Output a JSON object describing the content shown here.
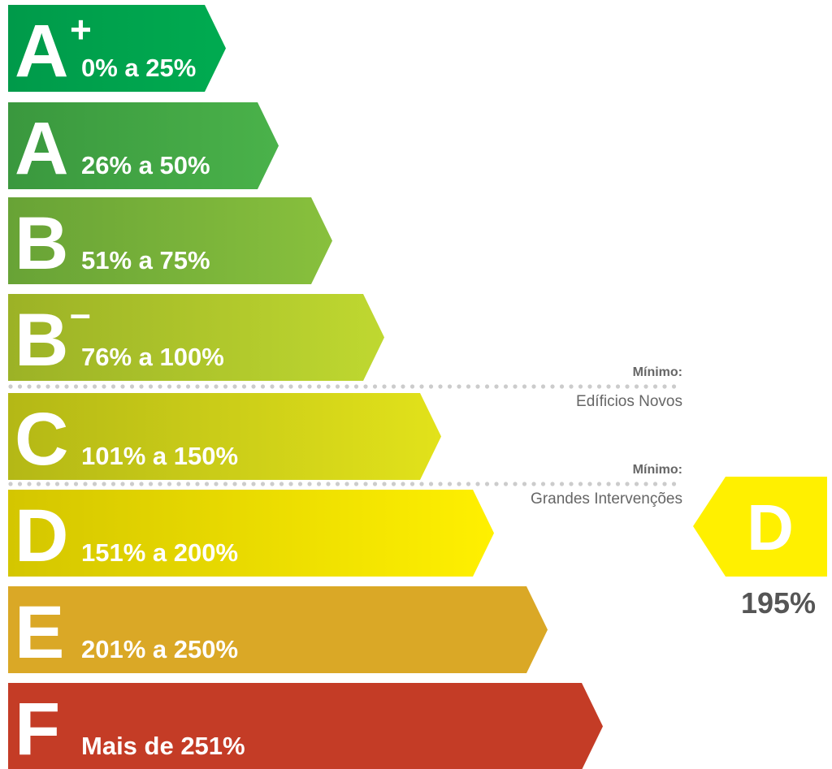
{
  "classes": [
    {
      "letter": "A",
      "modifier": "+",
      "range": "0% a 25%",
      "color_start": "#009a4a",
      "color_end": "#00ab50"
    },
    {
      "letter": "A",
      "modifier": "",
      "range": "26% a 50%",
      "color_start": "#3a983e",
      "color_end": "#4ab24a"
    },
    {
      "letter": "B",
      "modifier": "",
      "range": "51% a 75%",
      "color_start": "#68a336",
      "color_end": "#88c03d"
    },
    {
      "letter": "B",
      "modifier": "-",
      "range": "76% a 100%",
      "color_start": "#9cb226",
      "color_end": "#bfd830"
    },
    {
      "letter": "C",
      "modifier": "",
      "range": "101% a 150%",
      "color_start": "#b4b816",
      "color_end": "#e2e21a"
    },
    {
      "letter": "D",
      "modifier": "",
      "range": "151% a 200%",
      "color_start": "#d4c600",
      "color_end": "#fff000"
    },
    {
      "letter": "E",
      "modifier": "",
      "range": "201% a 250%",
      "color_start": "#daa826",
      "color_end": "#daa826"
    },
    {
      "letter": "F",
      "modifier": "",
      "range": "Mais de 251%",
      "color_start": "#c43c26",
      "color_end": "#c43c26"
    }
  ],
  "thresholds": [
    {
      "label": "Mínimo:",
      "sublabel": "Edíficios Novos",
      "after_class": "B-"
    },
    {
      "label": "Mínimo:",
      "sublabel": "Grandes Intervenções",
      "after_class": "C"
    }
  ],
  "result": {
    "letter": "D",
    "value": "195%",
    "color": "#fff000"
  },
  "colors": {
    "divider": "#cccccc",
    "label_text": "#666666"
  }
}
